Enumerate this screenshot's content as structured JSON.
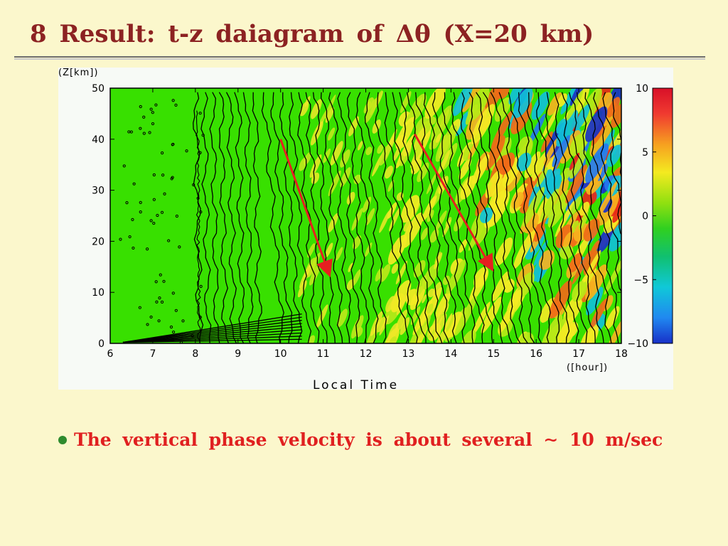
{
  "slide": {
    "title": "8 Result: t-z daiagram of Δθ (X=20 km)",
    "bullet": "The vertical phase velocity is about several ∼ 10 m/sec"
  },
  "colors": {
    "background": "#fbf7cc",
    "title": "#8c2222",
    "bullet_text": "#e02020",
    "bullet_dot": "#2e8b2e",
    "plot_base": "#38e000",
    "arrow": "#e62020"
  },
  "chart_data": {
    "type": "heatmap",
    "title": "t-z diagram of Δθ at X=20 km",
    "xlabel": "Local Time",
    "x_unit": "([hour])",
    "ylabel": "(Z[km])",
    "xlim": [
      6,
      18
    ],
    "ylim": [
      0,
      50
    ],
    "x_ticks": [
      6,
      7,
      8,
      9,
      10,
      11,
      12,
      13,
      14,
      15,
      16,
      17,
      18
    ],
    "y_ticks": [
      0,
      10,
      20,
      30,
      40,
      50
    ],
    "colorbar": {
      "range": [
        -10,
        10
      ],
      "ticks": [
        10,
        5,
        0,
        -5,
        -10
      ],
      "tick_labels": [
        "10",
        "5",
        "0",
        "−5",
        "−10"
      ]
    },
    "annotations": [
      {
        "type": "arrow",
        "from": [
          10.0,
          40
        ],
        "to": [
          11.1,
          14.5
        ]
      },
      {
        "type": "arrow",
        "from": [
          13.15,
          41
        ],
        "to": [
          14.9,
          15.5
        ]
      }
    ]
  }
}
